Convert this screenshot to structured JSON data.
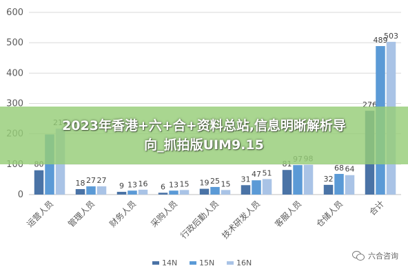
{
  "chart_data": {
    "type": "bar",
    "categories": [
      "运营人员",
      "管理人员",
      "财务人员",
      "采购人员",
      "行政后勤人员",
      "技术研发人员",
      "客服人员",
      "仓储人员",
      "合计"
    ],
    "series": [
      {
        "name": "14N",
        "values": [
          80,
          18,
          9,
          6,
          19,
          31,
          81,
          32,
          276
        ],
        "labels": [
          "80",
          "18",
          "9",
          "6",
          "19",
          "31",
          "81",
          "32",
          "276"
        ],
        "color": "#4a73a6"
      },
      {
        "name": "15N",
        "values": [
          198,
          27,
          13,
          13,
          25,
          47,
          97,
          68,
          489
        ],
        "labels": [
          "",
          "27",
          "13",
          "13",
          "25",
          "47",
          "97",
          "68",
          "489"
        ],
        "color": "#5b9ad6"
      },
      {
        "name": "16N",
        "values": [
          217,
          27,
          16,
          15,
          15,
          51,
          98,
          64,
          503
        ],
        "labels": [
          "217",
          "27",
          "16",
          "15",
          "15",
          "51",
          "98",
          "64",
          "503"
        ],
        "color": "#a9c3e6"
      }
    ],
    "ylim": [
      0,
      600
    ],
    "yticks": [
      0,
      100,
      200,
      300,
      400,
      500,
      600
    ],
    "grid": true,
    "legend": "bottom"
  },
  "overlay": {
    "line1": "2023年香港+六+合+资料总站,信息明晰解析导",
    "line2": "向_抓拍版UIM9.15"
  },
  "watermark": {
    "text": "六合咨询",
    "icon": "wechat-icon"
  }
}
